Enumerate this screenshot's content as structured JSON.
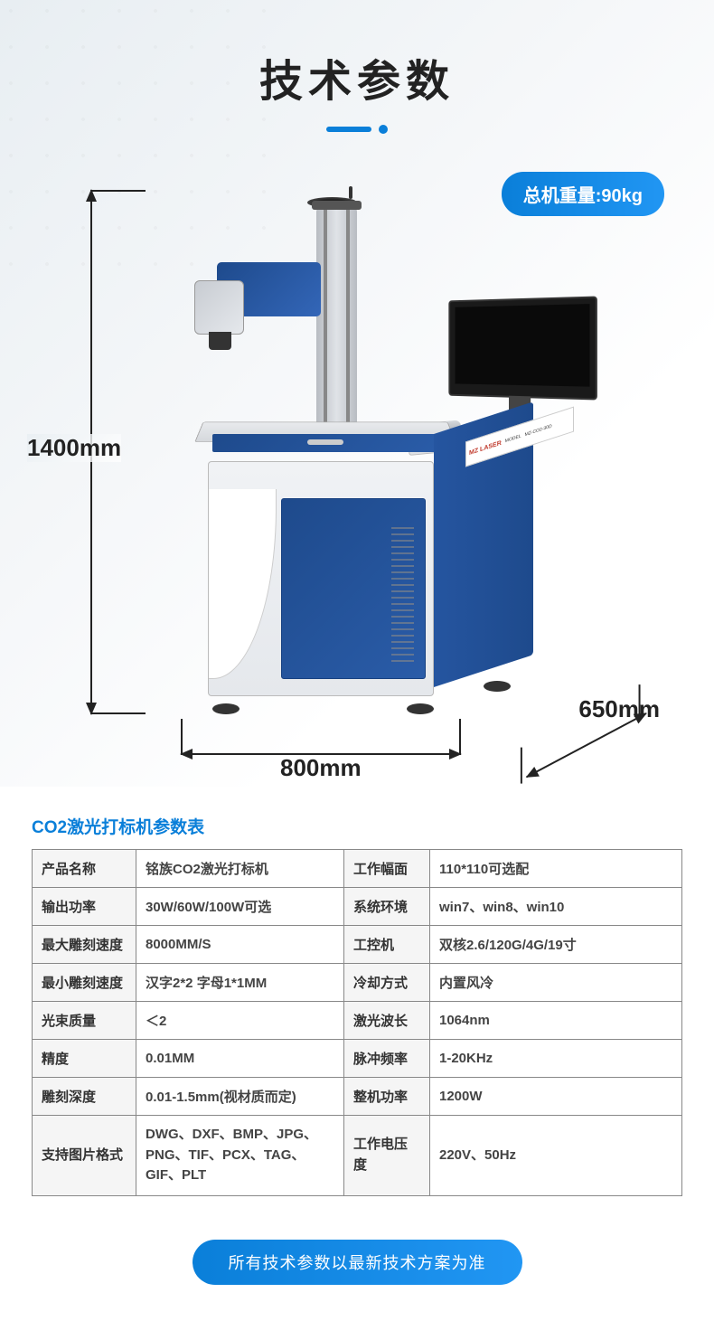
{
  "title": "技术参数",
  "weight_badge": "总机重量:90kg",
  "dimensions": {
    "height": "1400mm",
    "width": "800mm",
    "depth": "650mm"
  },
  "machine_label": {
    "brand": "MZ LASER",
    "model_prefix": "MODEL",
    "model": "MZ-CO2-30D"
  },
  "spec_table": {
    "title": "CO2激光打标机参数表",
    "rows": [
      {
        "l1": "产品名称",
        "v1": "铭族CO2激光打标机",
        "l2": "工作幅面",
        "v2": "110*110可选配"
      },
      {
        "l1": "输出功率",
        "v1": "30W/60W/100W可选",
        "l2": "系统环境",
        "v2": "win7、win8、win10"
      },
      {
        "l1": "最大雕刻速度",
        "v1": "8000MM/S",
        "l2": "工控机",
        "v2": "双核2.6/120G/4G/19寸"
      },
      {
        "l1": "最小雕刻速度",
        "v1": "汉字2*2 字母1*1MM",
        "l2": "冷却方式",
        "v2": "内置风冷"
      },
      {
        "l1": "光束质量",
        "v1": "＜2",
        "l2": "激光波长",
        "v2": "1064nm"
      },
      {
        "l1": "精度",
        "v1": "0.01MM",
        "l2": "脉冲频率",
        "v2": "1-20KHz"
      },
      {
        "l1": "雕刻深度",
        "v1": "0.01-1.5mm(视材质而定)",
        "l2": "整机功率",
        "v2": "1200W"
      },
      {
        "l1": "支持图片格式",
        "v1": "DWG、DXF、BMP、JPG、PNG、TIF、PCX、TAG、GIF、PLT",
        "l2": "工作电压度",
        "v2": "220V、50Hz"
      }
    ]
  },
  "footer_note": "所有技术参数以最新技术方案为准",
  "colors": {
    "accent_blue": "#0a7fd9",
    "machine_blue": "#1e4a8c",
    "table_border": "#888888",
    "table_label_bg": "#f5f5f5",
    "badge_gradient_start": "#0a7fd9",
    "badge_gradient_end": "#2196f3"
  }
}
